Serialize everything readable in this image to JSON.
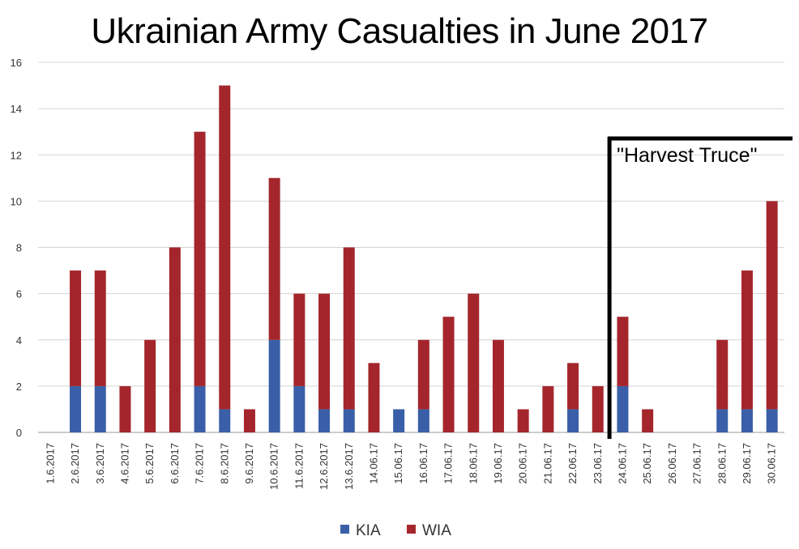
{
  "chart_data": {
    "type": "bar",
    "stacked": true,
    "title": "Ukrainian Army Casualties in June 2017",
    "xlabel": "",
    "ylabel": "",
    "ylim": [
      0,
      16
    ],
    "yticks": [
      "0",
      "2",
      "4",
      "6",
      "8",
      "10",
      "12",
      "14",
      "16"
    ],
    "grid": true,
    "legend_position": "bottom",
    "categories": [
      "1.6.2017",
      "2.6.2017",
      "3.6.2017",
      "4.6.2017",
      "5.6.2017",
      "6.6.2017",
      "7.6.2017",
      "8.6.2017",
      "9.6.2017",
      "10.6.2017",
      "11.6.2017",
      "12.6.2017",
      "13.6.2017",
      "14.06.17",
      "15.06.17",
      "16.06.17",
      "17.06.17",
      "18.06.17",
      "19.06.17",
      "20.06.17",
      "21.06.17",
      "22.06.17",
      "23.06.17",
      "24.06.17",
      "25.06.17",
      "26.06.17",
      "27.06.17",
      "28.06.17",
      "29.06.17",
      "30.06.17"
    ],
    "series": [
      {
        "name": "KIA",
        "color": "#3a5fa8",
        "values": [
          0,
          2,
          2,
          0,
          0,
          0,
          2,
          1,
          0,
          4,
          2,
          1,
          1,
          0,
          1,
          1,
          0,
          0,
          0,
          0,
          0,
          1,
          0,
          2,
          0,
          0,
          0,
          1,
          1,
          1
        ]
      },
      {
        "name": "WIA",
        "color": "#a4262c",
        "values": [
          0,
          5,
          5,
          2,
          4,
          8,
          11,
          14,
          1,
          7,
          4,
          5,
          7,
          3,
          0,
          3,
          5,
          6,
          4,
          1,
          2,
          2,
          2,
          3,
          1,
          0,
          0,
          3,
          6,
          9
        ]
      }
    ],
    "annotations": [
      {
        "text": "\"Harvest Truce\"",
        "from_category": "24.06.17",
        "to_category": "30.06.17"
      }
    ]
  }
}
